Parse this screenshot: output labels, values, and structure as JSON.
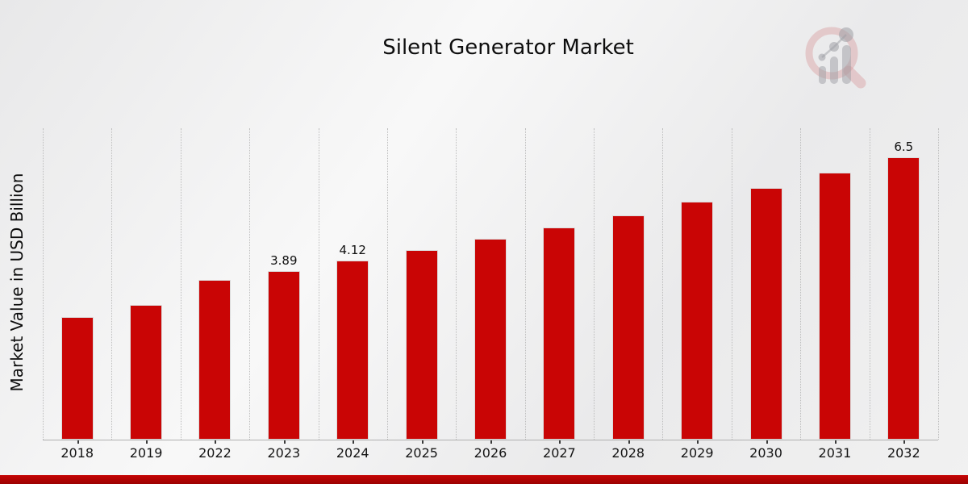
{
  "header": {
    "title": "Silent Generator Market"
  },
  "y_axis": {
    "label": "Market Value in USD Billion"
  },
  "chart_data": {
    "type": "bar",
    "title": "Silent Generator Market",
    "xlabel": "",
    "ylabel": "Market Value in USD Billion",
    "categories": [
      "2018",
      "2019",
      "2022",
      "2023",
      "2024",
      "2025",
      "2026",
      "2027",
      "2028",
      "2029",
      "2030",
      "2031",
      "2032"
    ],
    "values": [
      2.82,
      3.1,
      3.67,
      3.89,
      4.12,
      4.36,
      4.62,
      4.89,
      5.17,
      5.48,
      5.8,
      6.14,
      6.5
    ],
    "data_labels": [
      "",
      "",
      "",
      "3.89",
      "4.12",
      "",
      "",
      "",
      "",
      "",
      "",
      "",
      "6.5"
    ],
    "ylim": [
      0,
      7.17
    ],
    "grid": "vertical-dotted",
    "legend": "none",
    "bar_color": "#c90505"
  },
  "colors": {
    "bar": "#c90505",
    "footer_accent": "#b30404",
    "grid": "#bdbdbd",
    "text": "#0d0d0d"
  },
  "watermark": {
    "icon": "magnifier-bar-chart-logo"
  }
}
